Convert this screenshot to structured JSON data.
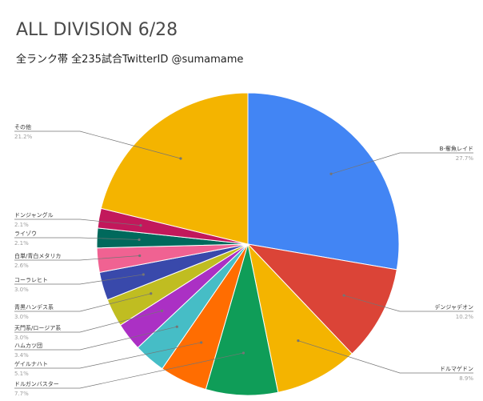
{
  "chart_data": {
    "type": "pie",
    "title": "ALL DIVISION 6/28",
    "subtitle": "全ランク帯 全235試合TwitterID @sumamame",
    "slices": [
      {
        "label": "B-奪魚レイド",
        "percent_label": "27.7%",
        "value": 27.7,
        "color": "#4285f4"
      },
      {
        "label": "デンジャデオン",
        "percent_label": "10.2%",
        "value": 10.2,
        "color": "#db4437"
      },
      {
        "label": "ドルマゲドン",
        "percent_label": "8.9%",
        "value": 8.9,
        "color": "#f4b400"
      },
      {
        "label": "ドルガンバスター",
        "percent_label": "7.7%",
        "value": 7.7,
        "color": "#0f9d58"
      },
      {
        "label": "ゲイルナハト",
        "percent_label": "5.1%",
        "value": 5.1,
        "color": "#ff6d01"
      },
      {
        "label": "ハムカツ団",
        "percent_label": "3.4%",
        "value": 3.4,
        "color": "#46bdc6"
      },
      {
        "label": "天門系/ロージア系",
        "percent_label": "3.0%",
        "value": 3.0,
        "color": "#ab30c4"
      },
      {
        "label": "青黒ハンデス系",
        "percent_label": "3.0%",
        "value": 3.0,
        "color": "#c0bd21"
      },
      {
        "label": "コーラレヒト",
        "percent_label": "3.0%",
        "value": 3.0,
        "color": "#3949ab"
      },
      {
        "label": "白単/青白メタリカ",
        "percent_label": "2.6%",
        "value": 2.6,
        "color": "#f06292"
      },
      {
        "label": "ライゾウ",
        "percent_label": "2.1%",
        "value": 2.1,
        "color": "#00695c"
      },
      {
        "label": "ドンジャングル",
        "percent_label": "2.1%",
        "value": 2.1,
        "color": "#c2185b"
      },
      {
        "label": "その他",
        "percent_label": "21.2%",
        "value": 21.2,
        "color": "#f4b400"
      }
    ],
    "legend": "none",
    "start_angle": "12 o'clock",
    "direction": "clockwise"
  }
}
